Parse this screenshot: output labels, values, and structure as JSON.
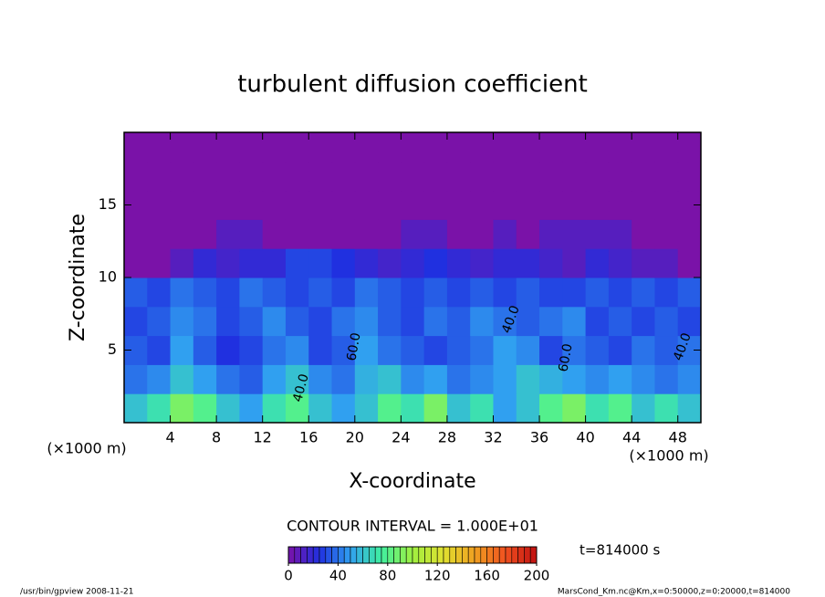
{
  "chart_data": {
    "type": "heatmap",
    "title": "turbulent diffusion coefficient",
    "x_label": "X-coordinate",
    "y_label": "Z-coordinate",
    "x_unit": "(×1000 m)",
    "x": [
      1,
      3,
      5,
      7,
      9,
      11,
      13,
      15,
      17,
      19,
      21,
      23,
      25,
      27,
      29,
      31,
      33,
      35,
      37,
      39,
      41,
      43,
      45,
      47,
      49
    ],
    "z": [
      1,
      3,
      5,
      7,
      9,
      11,
      13,
      15,
      17,
      19
    ],
    "values": [
      [
        60,
        70,
        90,
        80,
        60,
        50,
        70,
        80,
        60,
        50,
        60,
        80,
        70,
        90,
        60,
        70,
        50,
        60,
        80,
        90,
        70,
        80,
        60,
        70,
        60
      ],
      [
        40,
        45,
        60,
        50,
        40,
        35,
        50,
        60,
        45,
        40,
        55,
        60,
        45,
        50,
        40,
        45,
        50,
        60,
        55,
        50,
        45,
        50,
        45,
        40,
        45
      ],
      [
        35,
        30,
        50,
        35,
        25,
        30,
        40,
        45,
        30,
        35,
        50,
        40,
        35,
        30,
        35,
        40,
        50,
        45,
        30,
        40,
        35,
        30,
        40,
        35,
        40
      ],
      [
        30,
        35,
        45,
        40,
        30,
        35,
        45,
        35,
        30,
        40,
        45,
        35,
        30,
        40,
        35,
        45,
        40,
        35,
        40,
        45,
        30,
        35,
        30,
        35,
        30
      ],
      [
        35,
        30,
        40,
        35,
        30,
        40,
        35,
        30,
        35,
        30,
        40,
        35,
        30,
        35,
        30,
        35,
        30,
        35,
        30,
        30,
        35,
        30,
        35,
        30,
        35
      ],
      [
        0,
        0,
        10,
        20,
        15,
        20,
        20,
        30,
        30,
        25,
        20,
        15,
        20,
        25,
        20,
        15,
        20,
        20,
        15,
        10,
        20,
        15,
        10,
        10,
        0
      ],
      [
        0,
        0,
        0,
        0,
        10,
        10,
        0,
        0,
        0,
        0,
        0,
        0,
        10,
        10,
        0,
        0,
        10,
        0,
        10,
        10,
        10,
        10,
        0,
        0,
        0
      ],
      [
        0,
        0,
        0,
        0,
        0,
        0,
        0,
        0,
        0,
        0,
        0,
        0,
        0,
        0,
        0,
        0,
        0,
        0,
        0,
        0,
        0,
        0,
        0,
        0,
        0
      ],
      [
        0,
        0,
        0,
        0,
        0,
        0,
        0,
        0,
        0,
        0,
        0,
        0,
        0,
        0,
        0,
        0,
        0,
        0,
        0,
        0,
        0,
        0,
        0,
        0,
        0
      ],
      [
        0,
        0,
        0,
        0,
        0,
        0,
        0,
        0,
        0,
        0,
        0,
        0,
        0,
        0,
        0,
        0,
        0,
        0,
        0,
        0,
        0,
        0,
        0,
        0,
        0
      ]
    ],
    "xlim": [
      0,
      50
    ],
    "xticks": [
      4,
      8,
      12,
      16,
      20,
      24,
      28,
      32,
      36,
      40,
      44,
      48
    ],
    "ylim": [
      0,
      20
    ],
    "yticks": [
      5,
      10,
      15
    ],
    "clim": [
      0,
      200
    ],
    "cticks": [
      0,
      40,
      80,
      120,
      160,
      200
    ],
    "colors": [
      "#7a12a8",
      "#2030e0",
      "#30a0f0",
      "#40f0a0",
      "#a0f040",
      "#e0e030",
      "#f0a020",
      "#f05020",
      "#c01010"
    ],
    "contour_interval": "CONTOUR INTERVAL = 1.000E+01",
    "contour_labels": [
      "40.0",
      "60.0",
      "40.0",
      "60.0",
      "40.0"
    ],
    "time": "t=814000 s",
    "footer_left": "/usr/bin/gpview  2008-11-21",
    "footer_right": "MarsCond_Km.nc@Km,x=0:50000,z=0:20000,t=814000"
  }
}
